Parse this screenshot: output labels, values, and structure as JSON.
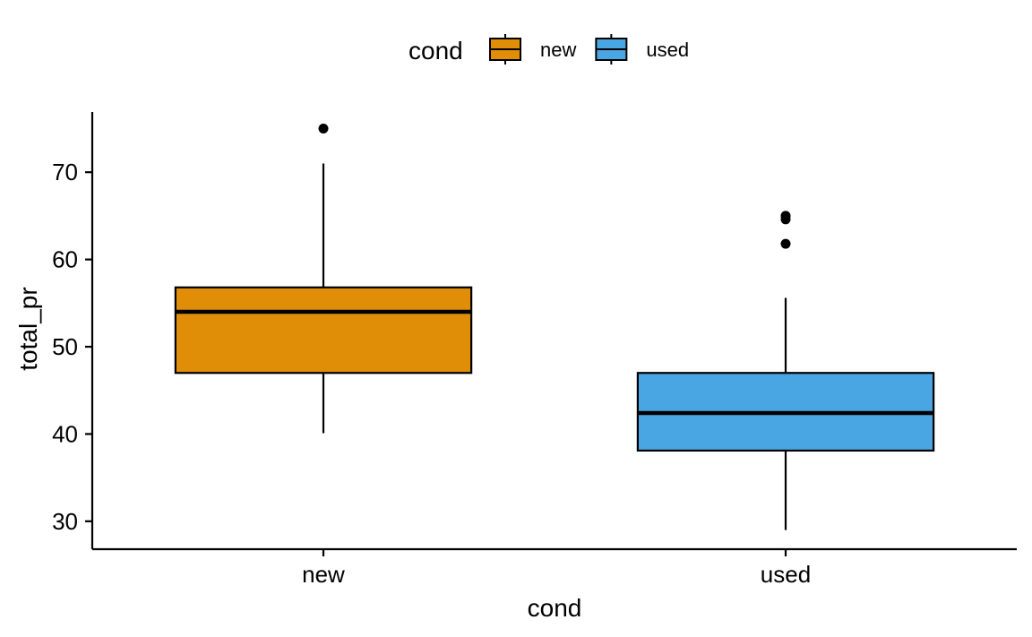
{
  "chart_data": {
    "type": "box",
    "xlabel": "cond",
    "ylabel": "total_pr",
    "ylim": [
      26.8,
      76.9
    ],
    "yticks": [
      30,
      40,
      50,
      60,
      70
    ],
    "categories": [
      "new",
      "used"
    ],
    "legend": {
      "title": "cond",
      "position": "top",
      "entries": [
        {
          "label": "new",
          "color": "#E08E07"
        },
        {
          "label": "used",
          "color": "#4AA6E3"
        }
      ]
    },
    "boxes": [
      {
        "name": "new",
        "color": "#E08E07",
        "whisker_low": 40.1,
        "q1": 47.0,
        "median": 54.0,
        "q3": 56.8,
        "whisker_high": 71.0,
        "outliers": [
          75.0
        ]
      },
      {
        "name": "used",
        "color": "#4AA6E3",
        "whisker_low": 29.0,
        "q1": 38.1,
        "median": 42.4,
        "q3": 47.0,
        "whisker_high": 55.6,
        "outliers": [
          61.8,
          64.6,
          65.0
        ]
      }
    ],
    "grid": false
  }
}
